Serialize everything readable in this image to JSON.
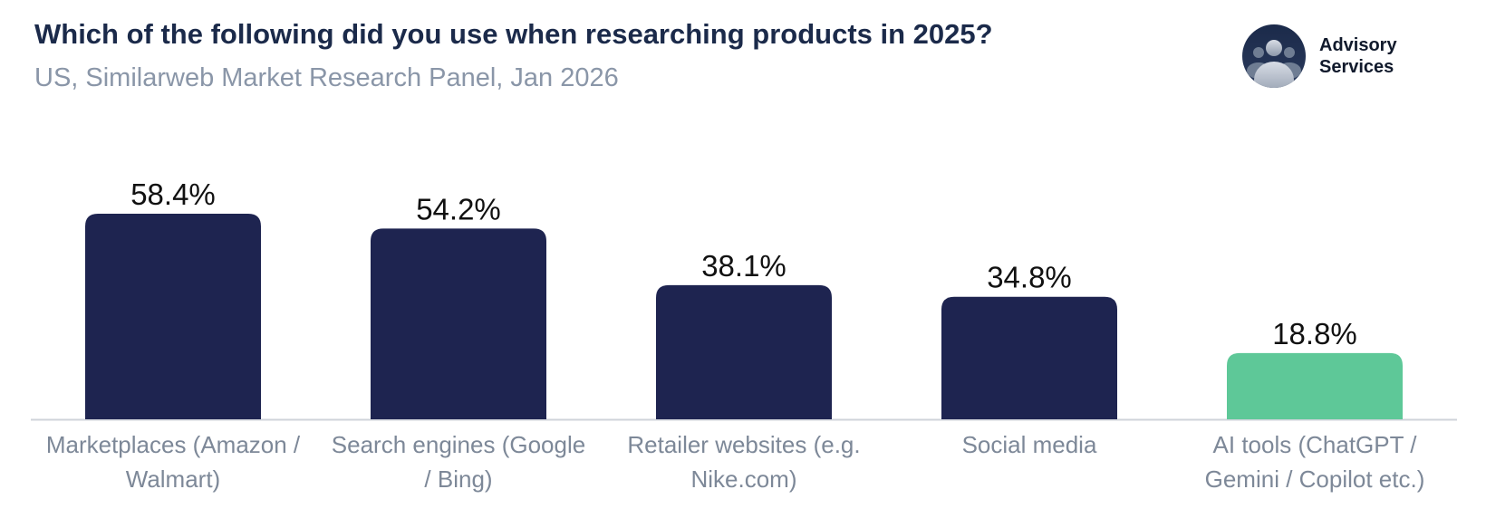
{
  "header": {
    "title": "Which of the following did you use when researching products in 2025?",
    "subtitle": "US, Similarweb Market Research Panel, Jan 2026"
  },
  "brand": {
    "line1": "Advisory",
    "line2": "Services",
    "icon": "people-group-icon"
  },
  "colors": {
    "bar": "#1e2450",
    "highlight": "#5ec898",
    "axis": "#cfd3da"
  },
  "chart_data": {
    "type": "bar",
    "title": "Which of the following did you use when researching products in 2025?",
    "subtitle": "US, Similarweb Market Research Panel, Jan 2026",
    "categories": [
      [
        "Marketplaces (Amazon /",
        "Walmart)"
      ],
      [
        "Search engines (Google",
        "/ Bing)"
      ],
      [
        "Retailer websites (e.g.",
        "Nike.com)"
      ],
      [
        "Social media"
      ],
      [
        "AI tools (ChatGPT /",
        "Gemini / Copilot etc.)"
      ]
    ],
    "values": [
      58.4,
      54.2,
      38.1,
      34.8,
      18.8
    ],
    "value_labels": [
      "58.4%",
      "54.2%",
      "38.1%",
      "34.8%",
      "18.8%"
    ],
    "highlighted_index": 4,
    "xlabel": "",
    "ylabel": "",
    "ylim": [
      0,
      58.4
    ],
    "grid": false,
    "legend": "none"
  }
}
